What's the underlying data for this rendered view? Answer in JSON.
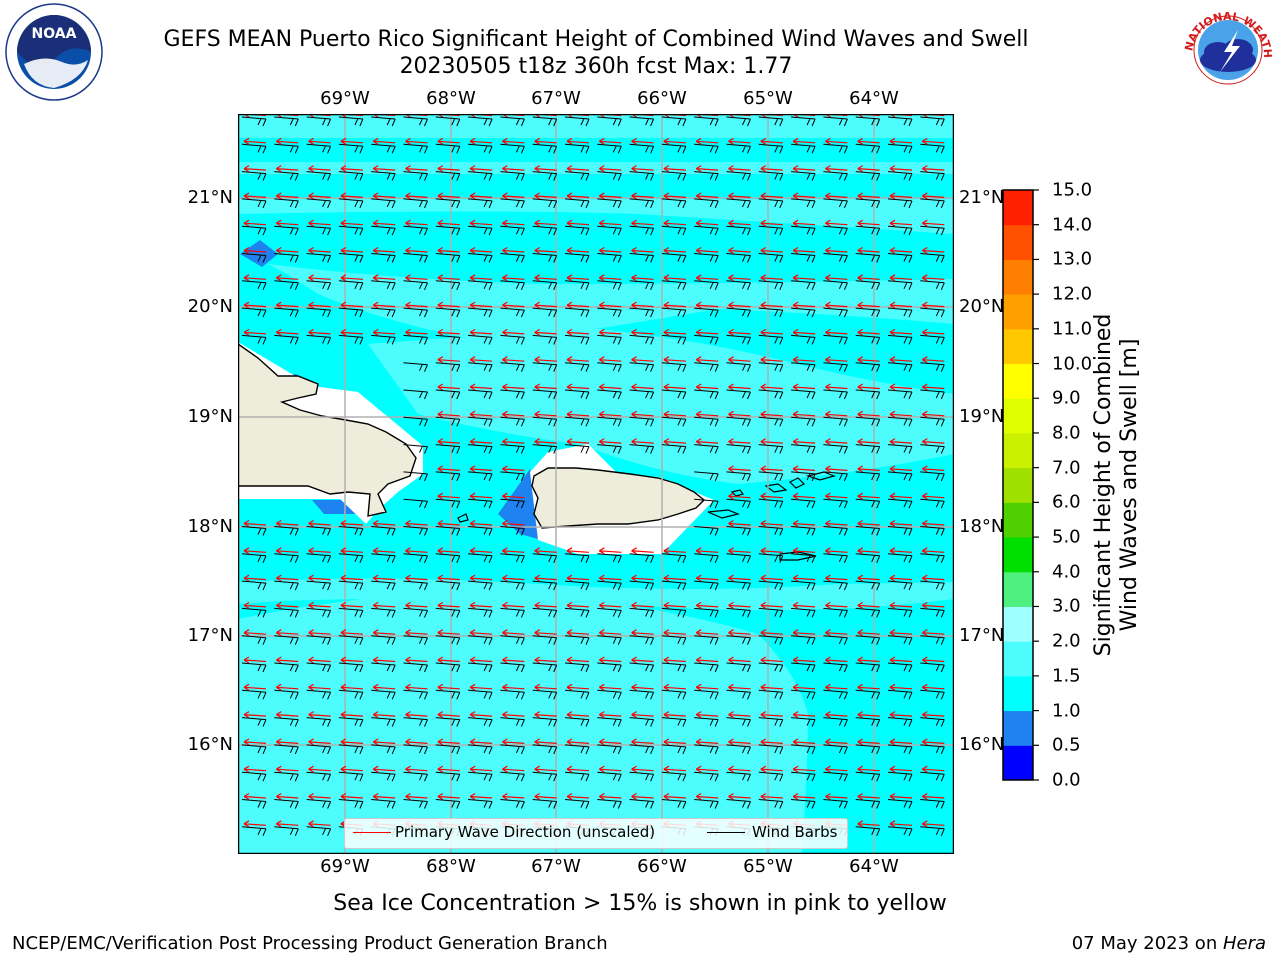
{
  "title": {
    "line1": "GEFS MEAN Puerto Rico Significant Height of Combined Wind Waves and Swell",
    "line2": "20230505 t18z 360h fcst   Max: 1.77"
  },
  "logos": {
    "noaa_text": "NOAA",
    "nws_text": "NATIONAL WEATHER SERVICE"
  },
  "map": {
    "lon_labels": [
      "69°W",
      "68°W",
      "67°W",
      "66°W",
      "65°W",
      "64°W"
    ],
    "lat_labels": [
      "21°N",
      "20°N",
      "19°N",
      "18°N",
      "17°N",
      "16°N"
    ],
    "extent": {
      "lon_min": -70.0,
      "lon_max": -63.25,
      "lat_min": 15.05,
      "lat_max": 21.75
    },
    "colors": {
      "ocean_main": "#00ffff",
      "ocean_light": "#4dfdfd",
      "low_wave": "#1e82f0",
      "land": "#eeecdb",
      "wave_arrow": "#ff0000",
      "wind_barb": "#000000"
    }
  },
  "legend": {
    "primary_wave": "Primary Wave Direction (unscaled)",
    "wind_barbs": "Wind Barbs"
  },
  "colorbar": {
    "title_line1": "Significant Height of Combined",
    "title_line2": "Wind Waves and Swell [m]",
    "ticks": [
      "0.0",
      "0.5",
      "1.0",
      "1.5",
      "2.0",
      "3.0",
      "4.0",
      "5.0",
      "6.0",
      "7.0",
      "8.0",
      "9.0",
      "10.0",
      "11.0",
      "12.0",
      "13.0",
      "14.0",
      "15.0"
    ],
    "colors": [
      "#0000ff",
      "#1e82f0",
      "#00ffff",
      "#4dfdfd",
      "#a0ffff",
      "#50f080",
      "#00e000",
      "#50d000",
      "#a0e000",
      "#c8f000",
      "#e0ff00",
      "#ffff00",
      "#ffc800",
      "#ffa000",
      "#ff8000",
      "#ff5000",
      "#ff2000"
    ]
  },
  "note": "Sea Ice Concentration > 15% is shown in pink to yellow",
  "footer": {
    "left": "NCEP/EMC/Verification Post Processing Product Generation Branch",
    "right_date": "07 May 2023 on ",
    "right_host": "Hera"
  }
}
